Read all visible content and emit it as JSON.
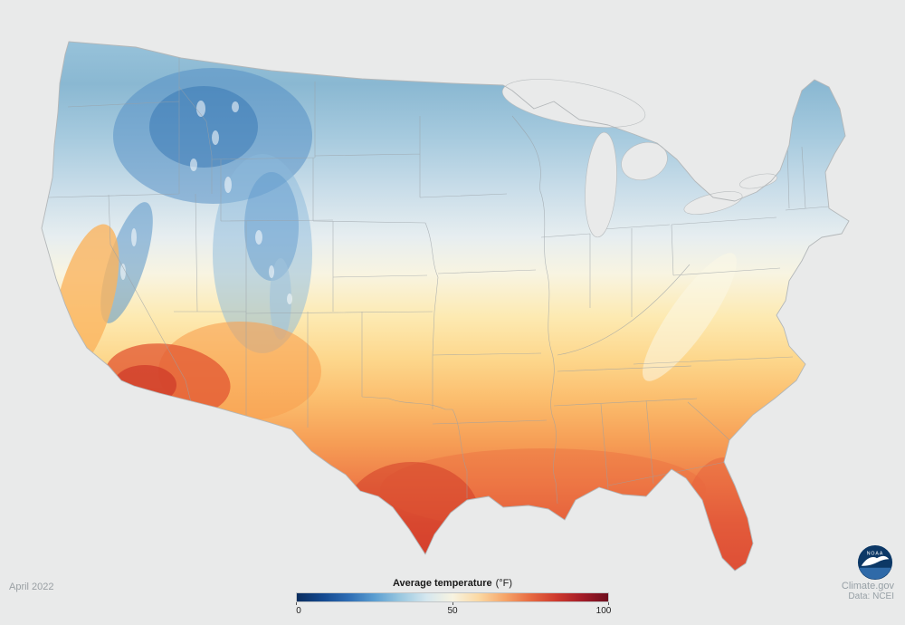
{
  "page": {
    "background_color": "#e9eaea"
  },
  "map": {
    "name": "Contiguous United States average temperature map",
    "gradient_stops": [
      [
        "0",
        "#97c2da"
      ],
      [
        "0.08",
        "#8ab8d2"
      ],
      [
        "0.18",
        "#a6cade"
      ],
      [
        "0.28",
        "#c9dde9"
      ],
      [
        "0.37",
        "#e7eef0"
      ],
      [
        "0.44",
        "#f8f4e1"
      ],
      [
        "0.52",
        "#fdeab2"
      ],
      [
        "0.6",
        "#fdd78c"
      ],
      [
        "0.68",
        "#fbbc6c"
      ],
      [
        "0.76",
        "#f69d55"
      ],
      [
        "0.84",
        "#ee7a47"
      ],
      [
        "0.91",
        "#e15639"
      ],
      [
        "1",
        "#d63e30"
      ]
    ]
  },
  "legend": {
    "title": "Average temperature",
    "units": "(°F)",
    "scale": {
      "min": 0,
      "mid": 50,
      "max": 100,
      "unit": "°F"
    },
    "ticks": [
      "0",
      "50",
      "100"
    ],
    "gradient_colors": [
      "#0a2d5e",
      "#14498f",
      "#2e6db4",
      "#5b9ed1",
      "#9ac8e0",
      "#d5e7ef",
      "#f7f3e1",
      "#fbd9a4",
      "#f6a66a",
      "#e76b42",
      "#ce3a2e",
      "#a31c28",
      "#6d0e1e"
    ]
  },
  "footer": {
    "date_label": "April 2022",
    "source": "Climate.gov",
    "credit": "Data: NCEI"
  },
  "logo": {
    "text": "NOAA"
  }
}
